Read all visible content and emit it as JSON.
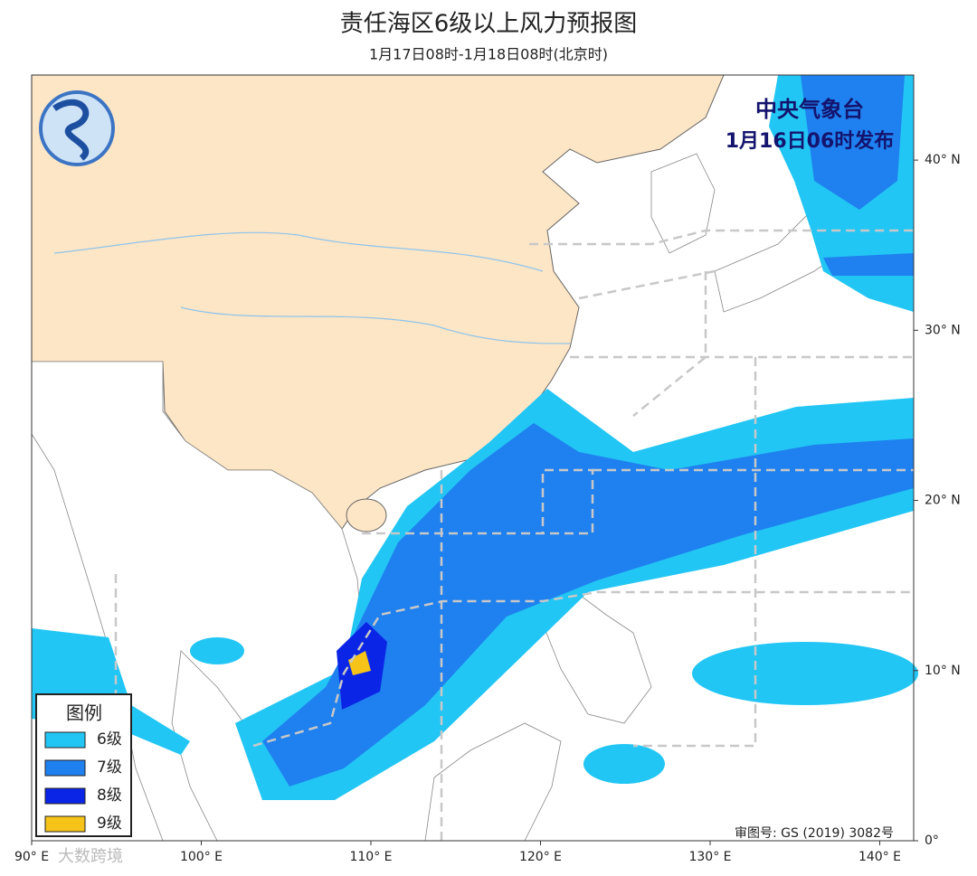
{
  "header": {
    "title": "责任海区6级以上风力预报图",
    "subtitle": "1月17日08时-1月18日08时(北京时)"
  },
  "issuer": {
    "name": "中央气象台",
    "issued": "1月16日06时发布"
  },
  "legend": {
    "title": "图例",
    "items": [
      {
        "label": "6级",
        "color": "#22c6f4"
      },
      {
        "label": "7级",
        "color": "#1f80ef"
      },
      {
        "label": "8级",
        "color": "#0b25e6"
      },
      {
        "label": "9级",
        "color": "#f6c419"
      }
    ]
  },
  "map": {
    "xlim": [
      90,
      142
    ],
    "ylim": [
      0,
      45
    ],
    "xticks": [
      {
        "value": 90,
        "label": "90° E"
      },
      {
        "value": 100,
        "label": "100° E"
      },
      {
        "value": 110,
        "label": "110° E"
      },
      {
        "value": 120,
        "label": "120° E"
      },
      {
        "value": 130,
        "label": "130° E"
      },
      {
        "value": 140,
        "label": "140° E"
      }
    ],
    "yticks": [
      {
        "value": 0,
        "label": "0°"
      },
      {
        "value": 10,
        "label": "10° N"
      },
      {
        "value": 20,
        "label": "20° N"
      },
      {
        "value": 30,
        "label": "30° N"
      },
      {
        "value": 40,
        "label": "40° N"
      }
    ]
  },
  "approval": "审图号: GS (2019) 3082号",
  "watermark": "大数跨境"
}
